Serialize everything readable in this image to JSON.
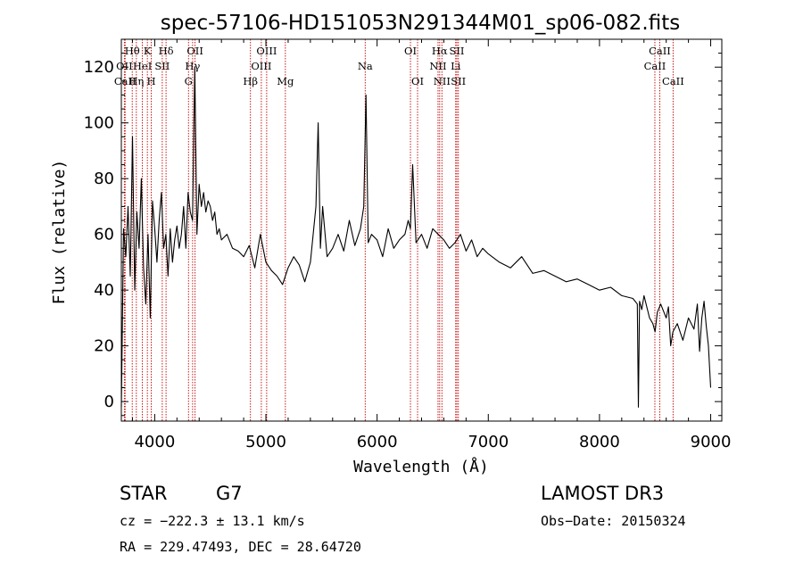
{
  "chart_data": {
    "type": "line",
    "title": "spec-57106-HD151053N291344M01_sp06-082.fits",
    "xlabel": "Wavelength (Å)",
    "ylabel": "Flux (relative)",
    "xlim": [
      3700,
      9100
    ],
    "ylim": [
      -7,
      130
    ],
    "x_ticks": [
      4000,
      5000,
      6000,
      7000,
      8000,
      9000
    ],
    "y_ticks": [
      0,
      20,
      40,
      60,
      80,
      100,
      120
    ],
    "series": [
      {
        "name": "spectrum",
        "x": [
          3700,
          3720,
          3740,
          3760,
          3780,
          3800,
          3820,
          3840,
          3860,
          3880,
          3900,
          3920,
          3940,
          3960,
          3980,
          4000,
          4020,
          4040,
          4060,
          4080,
          4100,
          4120,
          4140,
          4160,
          4180,
          4200,
          4220,
          4240,
          4260,
          4280,
          4300,
          4320,
          4340,
          4360,
          4380,
          4400,
          4420,
          4440,
          4460,
          4480,
          4500,
          4520,
          4540,
          4560,
          4580,
          4600,
          4650,
          4700,
          4750,
          4800,
          4850,
          4900,
          4950,
          5000,
          5050,
          5100,
          5150,
          5200,
          5250,
          5300,
          5350,
          5400,
          5450,
          5470,
          5490,
          5510,
          5550,
          5600,
          5650,
          5700,
          5750,
          5800,
          5850,
          5880,
          5900,
          5920,
          5950,
          6000,
          6050,
          6100,
          6150,
          6200,
          6250,
          6280,
          6300,
          6320,
          6350,
          6400,
          6450,
          6500,
          6550,
          6600,
          6650,
          6700,
          6750,
          6800,
          6850,
          6900,
          6950,
          7000,
          7100,
          7200,
          7300,
          7400,
          7500,
          7600,
          7700,
          7800,
          7900,
          8000,
          8100,
          8200,
          8300,
          8340,
          8350,
          8360,
          8380,
          8400,
          8450,
          8480,
          8500,
          8520,
          8550,
          8600,
          8620,
          8640,
          8660,
          8700,
          8750,
          8800,
          8850,
          8880,
          8900,
          8920,
          8940,
          8960,
          8980,
          9000
        ],
        "y": [
          -2,
          62,
          52,
          70,
          45,
          95,
          40,
          68,
          55,
          80,
          48,
          35,
          60,
          30,
          72,
          62,
          50,
          65,
          75,
          55,
          60,
          45,
          62,
          50,
          58,
          63,
          55,
          60,
          70,
          55,
          75,
          68,
          65,
          120,
          60,
          78,
          70,
          75,
          68,
          72,
          70,
          65,
          68,
          60,
          62,
          58,
          60,
          55,
          54,
          52,
          56,
          48,
          60,
          50,
          47,
          45,
          42,
          48,
          52,
          49,
          43,
          50,
          70,
          100,
          55,
          70,
          52,
          55,
          60,
          54,
          65,
          56,
          62,
          70,
          110,
          57,
          60,
          58,
          52,
          62,
          55,
          58,
          60,
          65,
          62,
          85,
          57,
          60,
          55,
          62,
          60,
          58,
          55,
          57,
          60,
          54,
          58,
          52,
          55,
          53,
          50,
          48,
          52,
          46,
          47,
          45,
          43,
          44,
          42,
          40,
          41,
          38,
          37,
          35,
          -2,
          36,
          33,
          38,
          30,
          28,
          25,
          32,
          35,
          30,
          34,
          20,
          25,
          28,
          22,
          30,
          26,
          35,
          18,
          30,
          36,
          27,
          20,
          5
        ]
      }
    ],
    "lines": [
      {
        "name": "Hθ",
        "wl": 3798,
        "row": 0
      },
      {
        "name": "OII",
        "wl": 3727,
        "row": 1
      },
      {
        "name": "CaII",
        "wl": 3734,
        "row": 2
      },
      {
        "name": "Hη",
        "wl": 3835,
        "row": 2
      },
      {
        "name": "HeI",
        "wl": 3889,
        "row": 1
      },
      {
        "name": "K",
        "wl": 3934,
        "row": 0
      },
      {
        "name": "H",
        "wl": 3969,
        "row": 2
      },
      {
        "name": "SII",
        "wl": 4068,
        "row": 1
      },
      {
        "name": "Hδ",
        "wl": 4102,
        "row": 0
      },
      {
        "name": "G",
        "wl": 4304,
        "row": 2
      },
      {
        "name": "Hγ",
        "wl": 4341,
        "row": 1
      },
      {
        "name": "OII",
        "wl": 4363,
        "row": 0
      },
      {
        "name": "Hβ",
        "wl": 4861,
        "row": 2
      },
      {
        "name": "OIII",
        "wl": 4959,
        "row": 1
      },
      {
        "name": "OIII",
        "wl": 5007,
        "row": 0
      },
      {
        "name": "Mg",
        "wl": 5175,
        "row": 2
      },
      {
        "name": "Na",
        "wl": 5893,
        "row": 1
      },
      {
        "name": "OI",
        "wl": 6300,
        "row": 0
      },
      {
        "name": "OI",
        "wl": 6364,
        "row": 2
      },
      {
        "name": "NII",
        "wl": 6548,
        "row": 1
      },
      {
        "name": "Hα",
        "wl": 6563,
        "row": 0
      },
      {
        "name": "NII",
        "wl": 6583,
        "row": 2
      },
      {
        "name": "Li",
        "wl": 6707,
        "row": 1
      },
      {
        "name": "SII",
        "wl": 6717,
        "row": 0
      },
      {
        "name": "SII",
        "wl": 6731,
        "row": 2
      },
      {
        "name": "CaII",
        "wl": 8498,
        "row": 1
      },
      {
        "name": "CaII",
        "wl": 8542,
        "row": 0
      },
      {
        "name": "CaII",
        "wl": 8662,
        "row": 2
      }
    ]
  },
  "footer": {
    "class_label": "STAR",
    "subclass": "G7",
    "survey": "LAMOST DR3",
    "cz": "cz = −222.3 ± 13.1 km/s",
    "obs_date": "Obs−Date: 20150324",
    "coords": "RA = 229.47493, DEC =  28.64720"
  }
}
